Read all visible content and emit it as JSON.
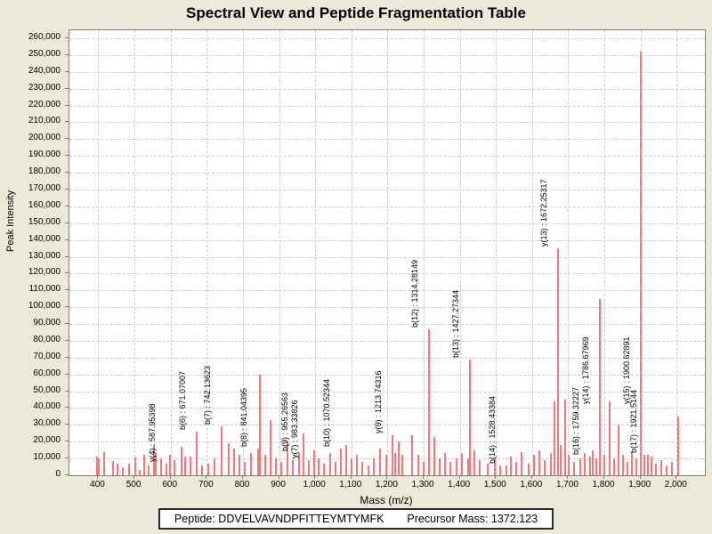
{
  "page": {
    "title": "Spectral View and Peptide Fragmentation Table"
  },
  "chart_data": {
    "type": "bar",
    "style": "mass-spectrum-sticks",
    "title": "Spectral View and Peptide Fragmentation Table",
    "xlabel": "Mass (m/z)",
    "ylabel": "Peak Intensity",
    "xlim": [
      320,
      2078
    ],
    "ylim": [
      0,
      260000
    ],
    "x_tick_min": 400,
    "x_tick_max": 2000,
    "x_tick_step": 100,
    "y_tick_step": 10000,
    "grid": "dashed",
    "legend": "none",
    "peak_color": "#f87878",
    "annotated_peaks": [
      {
        "label": "y(4) : 587.95398",
        "mz": 587.95398,
        "intensity": 7000,
        "placement": "above"
      },
      {
        "label": "b(6) : 671.07007",
        "mz": 671.07007,
        "intensity": 26000,
        "placement": "above"
      },
      {
        "label": "b(7) : 742.13623",
        "mz": 742.13623,
        "intensity": 29000,
        "placement": "above"
      },
      {
        "label": "b(8) : 841.04395",
        "mz": 841.04395,
        "intensity": 16000,
        "placement": "above"
      },
      {
        "label": "b(9) : 955.26563",
        "mz": 955.26563,
        "intensity": 13000,
        "placement": "above"
      },
      {
        "label": "y(7) : 983.33826",
        "mz": 983.33826,
        "intensity": 9000,
        "placement": "above"
      },
      {
        "label": "b(10) : 1070.52344",
        "mz": 1070.52344,
        "intensity": 16000,
        "placement": "above"
      },
      {
        "label": "y(9) : 1213.74316",
        "mz": 1213.74316,
        "intensity": 24000,
        "placement": "above"
      },
      {
        "label": "b(12) : 1314.28149",
        "mz": 1314.28149,
        "intensity": 87000,
        "placement": "above"
      },
      {
        "label": "b(13) : 1427.27344",
        "mz": 1427.27344,
        "intensity": 69000,
        "placement": "above"
      },
      {
        "label": "b(14) : 1528.43384",
        "mz": 1528.43384,
        "intensity": 6000,
        "placement": "above"
      },
      {
        "label": "y(13) : 1672.25317",
        "mz": 1672.25317,
        "intensity": 135000,
        "placement": "above"
      },
      {
        "label": "b(16) : 1759.32227",
        "mz": 1759.32227,
        "intensity": 11000,
        "placement": "above"
      },
      {
        "label": "y(14) : 1786.67969",
        "mz": 1786.67969,
        "intensity": 105000,
        "placement": "beside"
      },
      {
        "label": "y(15) : 1900.62891",
        "mz": 1900.62891,
        "intensity": 252000,
        "placement": "beside"
      },
      {
        "label": "b(17) : 1921.5144",
        "mz": 1921.5144,
        "intensity": 12000,
        "placement": "above"
      }
    ],
    "peaks": [
      [
        397,
        11000
      ],
      [
        402,
        10000
      ],
      [
        415,
        14000
      ],
      [
        440,
        8500
      ],
      [
        452,
        7000
      ],
      [
        467,
        5000
      ],
      [
        486,
        7000
      ],
      [
        501,
        10500
      ],
      [
        514,
        3000
      ],
      [
        526,
        12000
      ],
      [
        538,
        6000
      ],
      [
        553,
        18000
      ],
      [
        560,
        14000
      ],
      [
        573,
        10000
      ],
      [
        598,
        12000
      ],
      [
        610,
        9000
      ],
      [
        630,
        17000
      ],
      [
        640,
        11000
      ],
      [
        654,
        11000
      ],
      [
        686,
        6000
      ],
      [
        704,
        7000
      ],
      [
        721,
        10000
      ],
      [
        760,
        19000
      ],
      [
        775,
        16000
      ],
      [
        790,
        12000
      ],
      [
        805,
        8000
      ],
      [
        822,
        13000
      ],
      [
        847,
        60000
      ],
      [
        862,
        12000
      ],
      [
        877,
        33000
      ],
      [
        891,
        10000
      ],
      [
        906,
        8000
      ],
      [
        923,
        20000
      ],
      [
        938,
        9000
      ],
      [
        968,
        25000
      ],
      [
        998,
        15000
      ],
      [
        1010,
        10000
      ],
      [
        1025,
        7000
      ],
      [
        1042,
        13000
      ],
      [
        1057,
        8000
      ],
      [
        1086,
        18000
      ],
      [
        1101,
        10000
      ],
      [
        1116,
        12000
      ],
      [
        1131,
        8000
      ],
      [
        1148,
        6000
      ],
      [
        1163,
        10000
      ],
      [
        1180,
        16000
      ],
      [
        1197,
        12000
      ],
      [
        1222,
        13000
      ],
      [
        1232,
        20000
      ],
      [
        1242,
        12000
      ],
      [
        1269,
        24000
      ],
      [
        1284,
        12000
      ],
      [
        1299,
        8000
      ],
      [
        1330,
        23000
      ],
      [
        1345,
        10000
      ],
      [
        1360,
        13000
      ],
      [
        1375,
        8000
      ],
      [
        1392,
        10000
      ],
      [
        1407,
        13000
      ],
      [
        1422,
        10000
      ],
      [
        1440,
        15000
      ],
      [
        1454,
        9000
      ],
      [
        1477,
        7000
      ],
      [
        1496,
        10000
      ],
      [
        1511,
        6000
      ],
      [
        1541,
        11000
      ],
      [
        1556,
        8000
      ],
      [
        1570,
        14000
      ],
      [
        1590,
        7000
      ],
      [
        1605,
        12000
      ],
      [
        1620,
        15000
      ],
      [
        1635,
        9000
      ],
      [
        1652,
        13000
      ],
      [
        1662,
        44000
      ],
      [
        1679,
        18000
      ],
      [
        1691,
        45000
      ],
      [
        1701,
        12000
      ],
      [
        1716,
        8000
      ],
      [
        1733,
        10000
      ],
      [
        1746,
        13000
      ],
      [
        1768,
        15000
      ],
      [
        1778,
        10000
      ],
      [
        1800,
        12000
      ],
      [
        1815,
        44000
      ],
      [
        1827,
        10000
      ],
      [
        1839,
        30000
      ],
      [
        1852,
        12000
      ],
      [
        1864,
        8000
      ],
      [
        1876,
        14000
      ],
      [
        1889,
        10000
      ],
      [
        1911,
        12000
      ],
      [
        1931,
        11000
      ],
      [
        1943,
        7000
      ],
      [
        1958,
        9000
      ],
      [
        1973,
        6000
      ],
      [
        1988,
        8000
      ],
      [
        2005,
        35000
      ]
    ]
  },
  "footer": {
    "peptide": "Peptide: DDVELVAVNDPFITTEYMTYMFK",
    "precursor": "Precursor Mass: 1372.123"
  },
  "colors": {
    "background": "#ece9d8",
    "plot_background": "#ffffff",
    "gridline": "#cccccc",
    "peak": "#f87878",
    "axis": "#808080",
    "text": "#000000"
  }
}
